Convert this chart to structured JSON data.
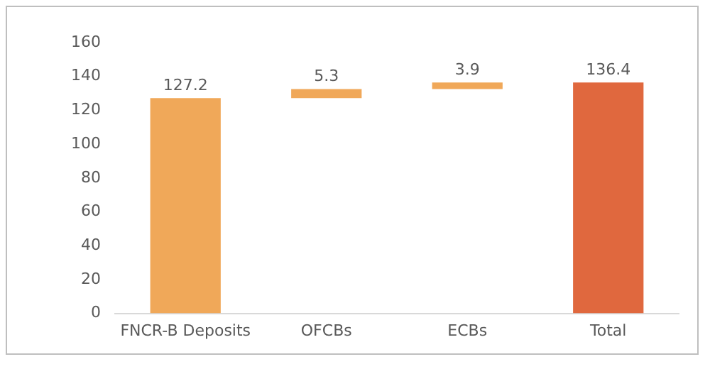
{
  "chart_data": {
    "type": "bar",
    "categories": [
      "FNCR-B Deposits",
      "OFCBs",
      "ECBs",
      "Total"
    ],
    "values": [
      127.2,
      5.3,
      3.9,
      136.4
    ],
    "base": [
      0,
      127.2,
      132.5,
      0
    ],
    "colors": [
      "#f0a859",
      "#f0a859",
      "#f0a859",
      "#e0683e"
    ],
    "ylim": [
      0,
      160
    ],
    "yticks": [
      0,
      20,
      40,
      60,
      80,
      100,
      120,
      140,
      160
    ],
    "grid": false,
    "legend": false,
    "data_labels": true
  }
}
